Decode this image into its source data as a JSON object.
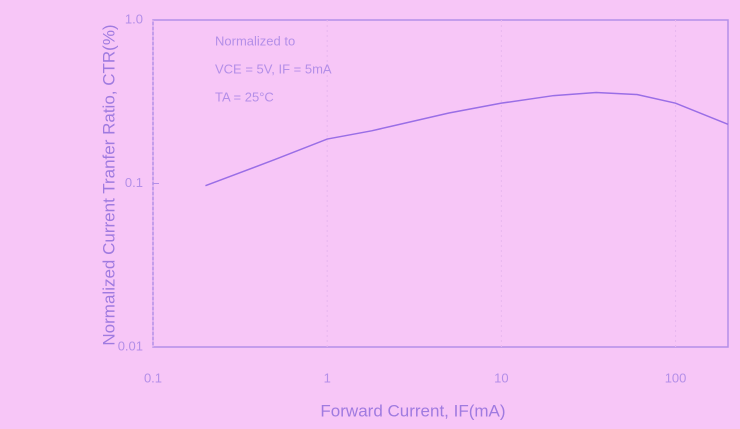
{
  "chart_data": {
    "type": "line",
    "title": "",
    "x_label": "Forward Current, IF(mA)",
    "y_label": "Normalized Current Tranfer Ratio, CTR(%)",
    "annotations": [
      "Normalized to",
      "VCE = 5V, IF = 5mA",
      "TA = 25°C"
    ],
    "x": [
      0.2,
      0.5,
      1,
      1.8,
      5,
      10,
      20,
      35,
      60,
      100,
      200
    ],
    "series": [
      {
        "name": "CTR",
        "color": "#9a6ee6",
        "values": [
          0.097,
          0.14,
          0.187,
          0.21,
          0.27,
          0.31,
          0.345,
          0.36,
          0.35,
          0.31,
          0.23
        ]
      }
    ],
    "xlim": [
      0.1,
      200
    ],
    "ylim": [
      0.01,
      1
    ],
    "xticks": [
      0.1,
      1,
      10,
      100
    ],
    "yticks": [
      0.01,
      0.1,
      {
        "value": 1,
        "label": "1.0"
      }
    ],
    "xscale": "log",
    "yscale": "log",
    "grid": true
  }
}
